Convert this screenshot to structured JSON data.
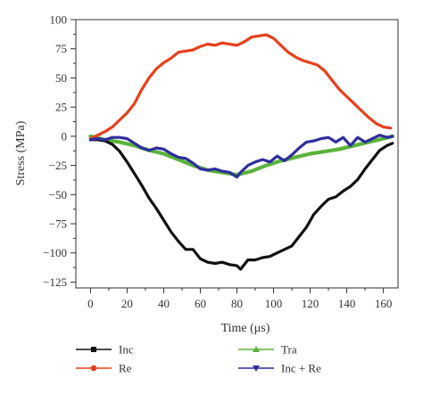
{
  "chart_data": {
    "type": "line",
    "xlabel": "Time (μs)",
    "ylabel": "Stress (MPa)",
    "xlim": [
      -8,
      168
    ],
    "ylim": [
      -130,
      100
    ],
    "xticks": [
      "0",
      "20",
      "40",
      "60",
      "80",
      "100",
      "120",
      "140",
      "160"
    ],
    "yticks": [
      "100",
      "75",
      "50",
      "25",
      "0",
      "−25",
      "−50",
      "−75",
      "−100",
      "−125"
    ],
    "grid": false,
    "legend_position": "bottom",
    "series": [
      {
        "name": "Inc",
        "color": "#111111",
        "marker": "square",
        "points": [
          [
            0,
            -3
          ],
          [
            4,
            -3
          ],
          [
            8,
            -4
          ],
          [
            12,
            -7
          ],
          [
            16,
            -13
          ],
          [
            20,
            -22
          ],
          [
            24,
            -32
          ],
          [
            28,
            -42
          ],
          [
            32,
            -53
          ],
          [
            36,
            -62
          ],
          [
            40,
            -72
          ],
          [
            44,
            -82
          ],
          [
            48,
            -90
          ],
          [
            52,
            -97
          ],
          [
            56,
            -97
          ],
          [
            60,
            -105
          ],
          [
            64,
            -108
          ],
          [
            68,
            -109
          ],
          [
            72,
            -108
          ],
          [
            76,
            -110
          ],
          [
            80,
            -111
          ],
          [
            82,
            -114
          ],
          [
            86,
            -106
          ],
          [
            90,
            -106
          ],
          [
            94,
            -104
          ],
          [
            98,
            -103
          ],
          [
            102,
            -100
          ],
          [
            106,
            -97
          ],
          [
            110,
            -94
          ],
          [
            114,
            -86
          ],
          [
            118,
            -78
          ],
          [
            122,
            -67
          ],
          [
            126,
            -60
          ],
          [
            130,
            -54
          ],
          [
            134,
            -52
          ],
          [
            138,
            -47
          ],
          [
            142,
            -43
          ],
          [
            146,
            -37
          ],
          [
            150,
            -28
          ],
          [
            154,
            -20
          ],
          [
            158,
            -12
          ],
          [
            162,
            -8
          ],
          [
            165,
            -6
          ]
        ]
      },
      {
        "name": "Re",
        "color": "#e8401c",
        "marker": "circle",
        "points": [
          [
            0,
            -2
          ],
          [
            4,
            1
          ],
          [
            8,
            4
          ],
          [
            12,
            8
          ],
          [
            16,
            14
          ],
          [
            20,
            20
          ],
          [
            24,
            28
          ],
          [
            28,
            40
          ],
          [
            32,
            50
          ],
          [
            36,
            58
          ],
          [
            40,
            63
          ],
          [
            44,
            67
          ],
          [
            48,
            72
          ],
          [
            52,
            73
          ],
          [
            56,
            74
          ],
          [
            60,
            77
          ],
          [
            64,
            79
          ],
          [
            68,
            78
          ],
          [
            72,
            80
          ],
          [
            76,
            79
          ],
          [
            80,
            78
          ],
          [
            84,
            81
          ],
          [
            88,
            85
          ],
          [
            92,
            86
          ],
          [
            96,
            87
          ],
          [
            100,
            84
          ],
          [
            104,
            78
          ],
          [
            108,
            72
          ],
          [
            112,
            68
          ],
          [
            116,
            65
          ],
          [
            120,
            63
          ],
          [
            124,
            61
          ],
          [
            128,
            56
          ],
          [
            132,
            48
          ],
          [
            136,
            40
          ],
          [
            140,
            34
          ],
          [
            144,
            28
          ],
          [
            148,
            22
          ],
          [
            152,
            16
          ],
          [
            156,
            11
          ],
          [
            160,
            8
          ],
          [
            164,
            7
          ]
        ]
      },
      {
        "name": "Tra",
        "color": "#5bb33a",
        "marker": "triangle",
        "points": [
          [
            0,
            0
          ],
          [
            8,
            -3
          ],
          [
            16,
            -5
          ],
          [
            24,
            -8
          ],
          [
            32,
            -12
          ],
          [
            40,
            -15
          ],
          [
            48,
            -20
          ],
          [
            56,
            -25
          ],
          [
            64,
            -29
          ],
          [
            72,
            -31
          ],
          [
            80,
            -33
          ],
          [
            88,
            -30
          ],
          [
            96,
            -25
          ],
          [
            104,
            -21
          ],
          [
            112,
            -18
          ],
          [
            120,
            -15
          ],
          [
            128,
            -13
          ],
          [
            136,
            -11
          ],
          [
            144,
            -8
          ],
          [
            152,
            -5
          ],
          [
            160,
            -2
          ],
          [
            165,
            0
          ]
        ]
      },
      {
        "name": "Inc + Re",
        "color": "#2e2e9e",
        "marker": "triangle-down",
        "points": [
          [
            0,
            -3
          ],
          [
            4,
            -2
          ],
          [
            8,
            -3
          ],
          [
            12,
            -1
          ],
          [
            16,
            -1
          ],
          [
            20,
            -2
          ],
          [
            24,
            -6
          ],
          [
            28,
            -10
          ],
          [
            32,
            -12
          ],
          [
            36,
            -10
          ],
          [
            40,
            -11
          ],
          [
            44,
            -15
          ],
          [
            48,
            -18
          ],
          [
            52,
            -19
          ],
          [
            56,
            -23
          ],
          [
            60,
            -28
          ],
          [
            64,
            -29
          ],
          [
            68,
            -28
          ],
          [
            72,
            -30
          ],
          [
            76,
            -31
          ],
          [
            80,
            -35
          ],
          [
            82,
            -31
          ],
          [
            86,
            -25
          ],
          [
            90,
            -22
          ],
          [
            94,
            -20
          ],
          [
            98,
            -22
          ],
          [
            102,
            -17
          ],
          [
            106,
            -21
          ],
          [
            110,
            -16
          ],
          [
            114,
            -10
          ],
          [
            118,
            -5
          ],
          [
            122,
            -4
          ],
          [
            126,
            -2
          ],
          [
            130,
            -1
          ],
          [
            134,
            -5
          ],
          [
            138,
            -1
          ],
          [
            142,
            -8
          ],
          [
            146,
            -1
          ],
          [
            150,
            -5
          ],
          [
            154,
            -2
          ],
          [
            158,
            1
          ],
          [
            162,
            -1
          ],
          [
            165,
            0
          ]
        ]
      }
    ]
  }
}
